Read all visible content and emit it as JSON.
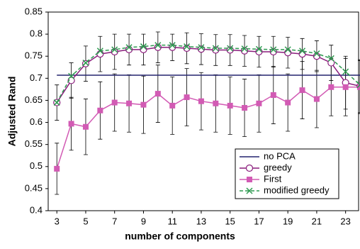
{
  "chart_data": {
    "type": "line",
    "x_label": "number of components",
    "y_label": "Adjusted Rand",
    "x": [
      3,
      4,
      5,
      6,
      7,
      8,
      9,
      10,
      11,
      12,
      13,
      14,
      15,
      16,
      17,
      18,
      19,
      20,
      21,
      22,
      23,
      24
    ],
    "xlim": [
      2.4,
      23.9
    ],
    "xticks": [
      3,
      5,
      7,
      9,
      11,
      13,
      15,
      17,
      19,
      21,
      23
    ],
    "ylim": [
      0.4,
      0.85
    ],
    "yticks": [
      0.4,
      0.45,
      0.5,
      0.55,
      0.6,
      0.65,
      0.7,
      0.75,
      0.8,
      0.85
    ],
    "legend": "lower right",
    "series": [
      {
        "name": "no PCA",
        "color": "#23236e",
        "marker": "none",
        "dash": false,
        "values": [
          0.707,
          0.707,
          0.707,
          0.707,
          0.707,
          0.707,
          0.707,
          0.707,
          0.707,
          0.707,
          0.707,
          0.707,
          0.707,
          0.707,
          0.707,
          0.707,
          0.707,
          0.707,
          0.707,
          0.707,
          0.707,
          0.707
        ]
      },
      {
        "name": "greedy",
        "color": "#8a1c7c",
        "marker": "circle",
        "dash": false,
        "values": [
          0.645,
          0.695,
          0.733,
          0.755,
          0.76,
          0.765,
          0.765,
          0.77,
          0.77,
          0.768,
          0.766,
          0.764,
          0.764,
          0.762,
          0.76,
          0.76,
          0.758,
          0.755,
          0.75,
          0.735,
          0.69,
          0.682
        ],
        "errors": [
          0.04,
          0.04,
          0.04,
          0.04,
          0.04,
          0.035,
          0.035,
          0.035,
          0.03,
          0.035,
          0.035,
          0.035,
          0.035,
          0.035,
          0.035,
          0.035,
          0.035,
          0.035,
          0.035,
          0.04,
          0.06,
          0.06
        ]
      },
      {
        "name": "First",
        "color": "#d25bb4",
        "marker": "square",
        "dash": false,
        "values": [
          0.495,
          0.597,
          0.59,
          0.627,
          0.645,
          0.643,
          0.64,
          0.665,
          0.638,
          0.657,
          0.648,
          0.643,
          0.638,
          0.633,
          0.643,
          0.662,
          0.645,
          0.673,
          0.653,
          0.68,
          0.68,
          0.68
        ],
        "errors": [
          0.058,
          0.06,
          0.063,
          0.065,
          0.065,
          0.065,
          0.065,
          0.065,
          0.065,
          0.065,
          0.065,
          0.065,
          0.065,
          0.065,
          0.065,
          0.065,
          0.065,
          0.065,
          0.065,
          0.065,
          0.065,
          0.06
        ]
      },
      {
        "name": "modified greedy",
        "color": "#2e9a50",
        "marker": "x",
        "dash": true,
        "values": [
          0.645,
          0.705,
          0.735,
          0.762,
          0.765,
          0.77,
          0.772,
          0.775,
          0.775,
          0.772,
          0.77,
          0.768,
          0.768,
          0.767,
          0.766,
          0.765,
          0.765,
          0.762,
          0.756,
          0.745,
          0.715,
          0.685
        ]
      }
    ]
  }
}
